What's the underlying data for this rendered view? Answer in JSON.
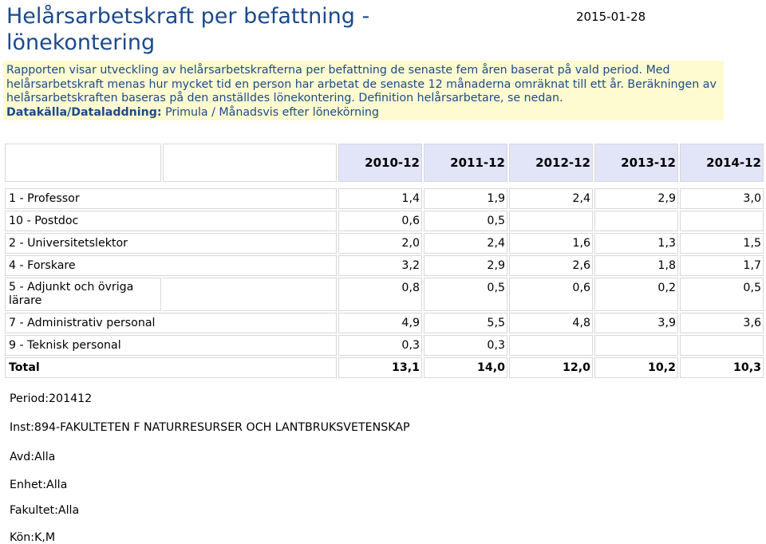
{
  "header": {
    "title": "Helårsarbetskraft per befattning - lönekontering",
    "date": "2015-01-28"
  },
  "info": {
    "text": "Rapporten visar utveckling av helårsarbetskrafterna per befattning de senaste fem åren baserat på vald period. Med helårsarbetskraft menas hur mycket tid en person har arbetat de senaste 12 månaderna omräknat till ett år. Beräkningen av helårsarbetskraften baseras på den anställdes lönekontering. Definition helårsarbetare, se nedan.",
    "source_label": "Datakälla/Dataladdning:",
    "source_value": "Primula / Månadsvis efter lönekörning"
  },
  "table": {
    "years": [
      "2010-12",
      "2011-12",
      "2012-12",
      "2013-12",
      "2014-12"
    ],
    "rows": [
      {
        "label": "1 - Professor",
        "values": [
          "1,4",
          "1,9",
          "2,4",
          "2,9",
          "3,0"
        ]
      },
      {
        "label": "10 - Postdoc",
        "values": [
          "0,6",
          "0,5",
          "",
          "",
          ""
        ]
      },
      {
        "label": "2 - Universitetslektor",
        "values": [
          "2,0",
          "2,4",
          "1,6",
          "1,3",
          "1,5"
        ]
      },
      {
        "label": "4 - Forskare",
        "values": [
          "3,2",
          "2,9",
          "2,6",
          "1,8",
          "1,7"
        ]
      },
      {
        "label": "5 - Adjunkt och övriga lärare",
        "values": [
          "0,8",
          "0,5",
          "0,6",
          "0,2",
          "0,5"
        ]
      },
      {
        "label": "7 - Administrativ personal",
        "values": [
          "4,9",
          "5,5",
          "4,8",
          "3,9",
          "3,6"
        ]
      },
      {
        "label": "9 - Teknisk personal",
        "values": [
          "0,3",
          "0,3",
          "",
          "",
          ""
        ]
      }
    ],
    "total": {
      "label": "Total",
      "values": [
        "13,1",
        "14,0",
        "12,0",
        "10,2",
        "10,3"
      ]
    }
  },
  "params": [
    {
      "label": "Period:",
      "value": "201412"
    },
    {
      "label": "Inst:",
      "value": "894-FAKULTETEN F NATURRESURSER OCH LANTBRUKSVETENSKAP"
    },
    {
      "label": "Avd:",
      "value": "Alla"
    },
    {
      "label": "Enhet:",
      "value": "Alla"
    },
    {
      "label": "Fakultet:",
      "value": "Alla"
    },
    {
      "label": "Kön:",
      "value": "K,M"
    }
  ]
}
